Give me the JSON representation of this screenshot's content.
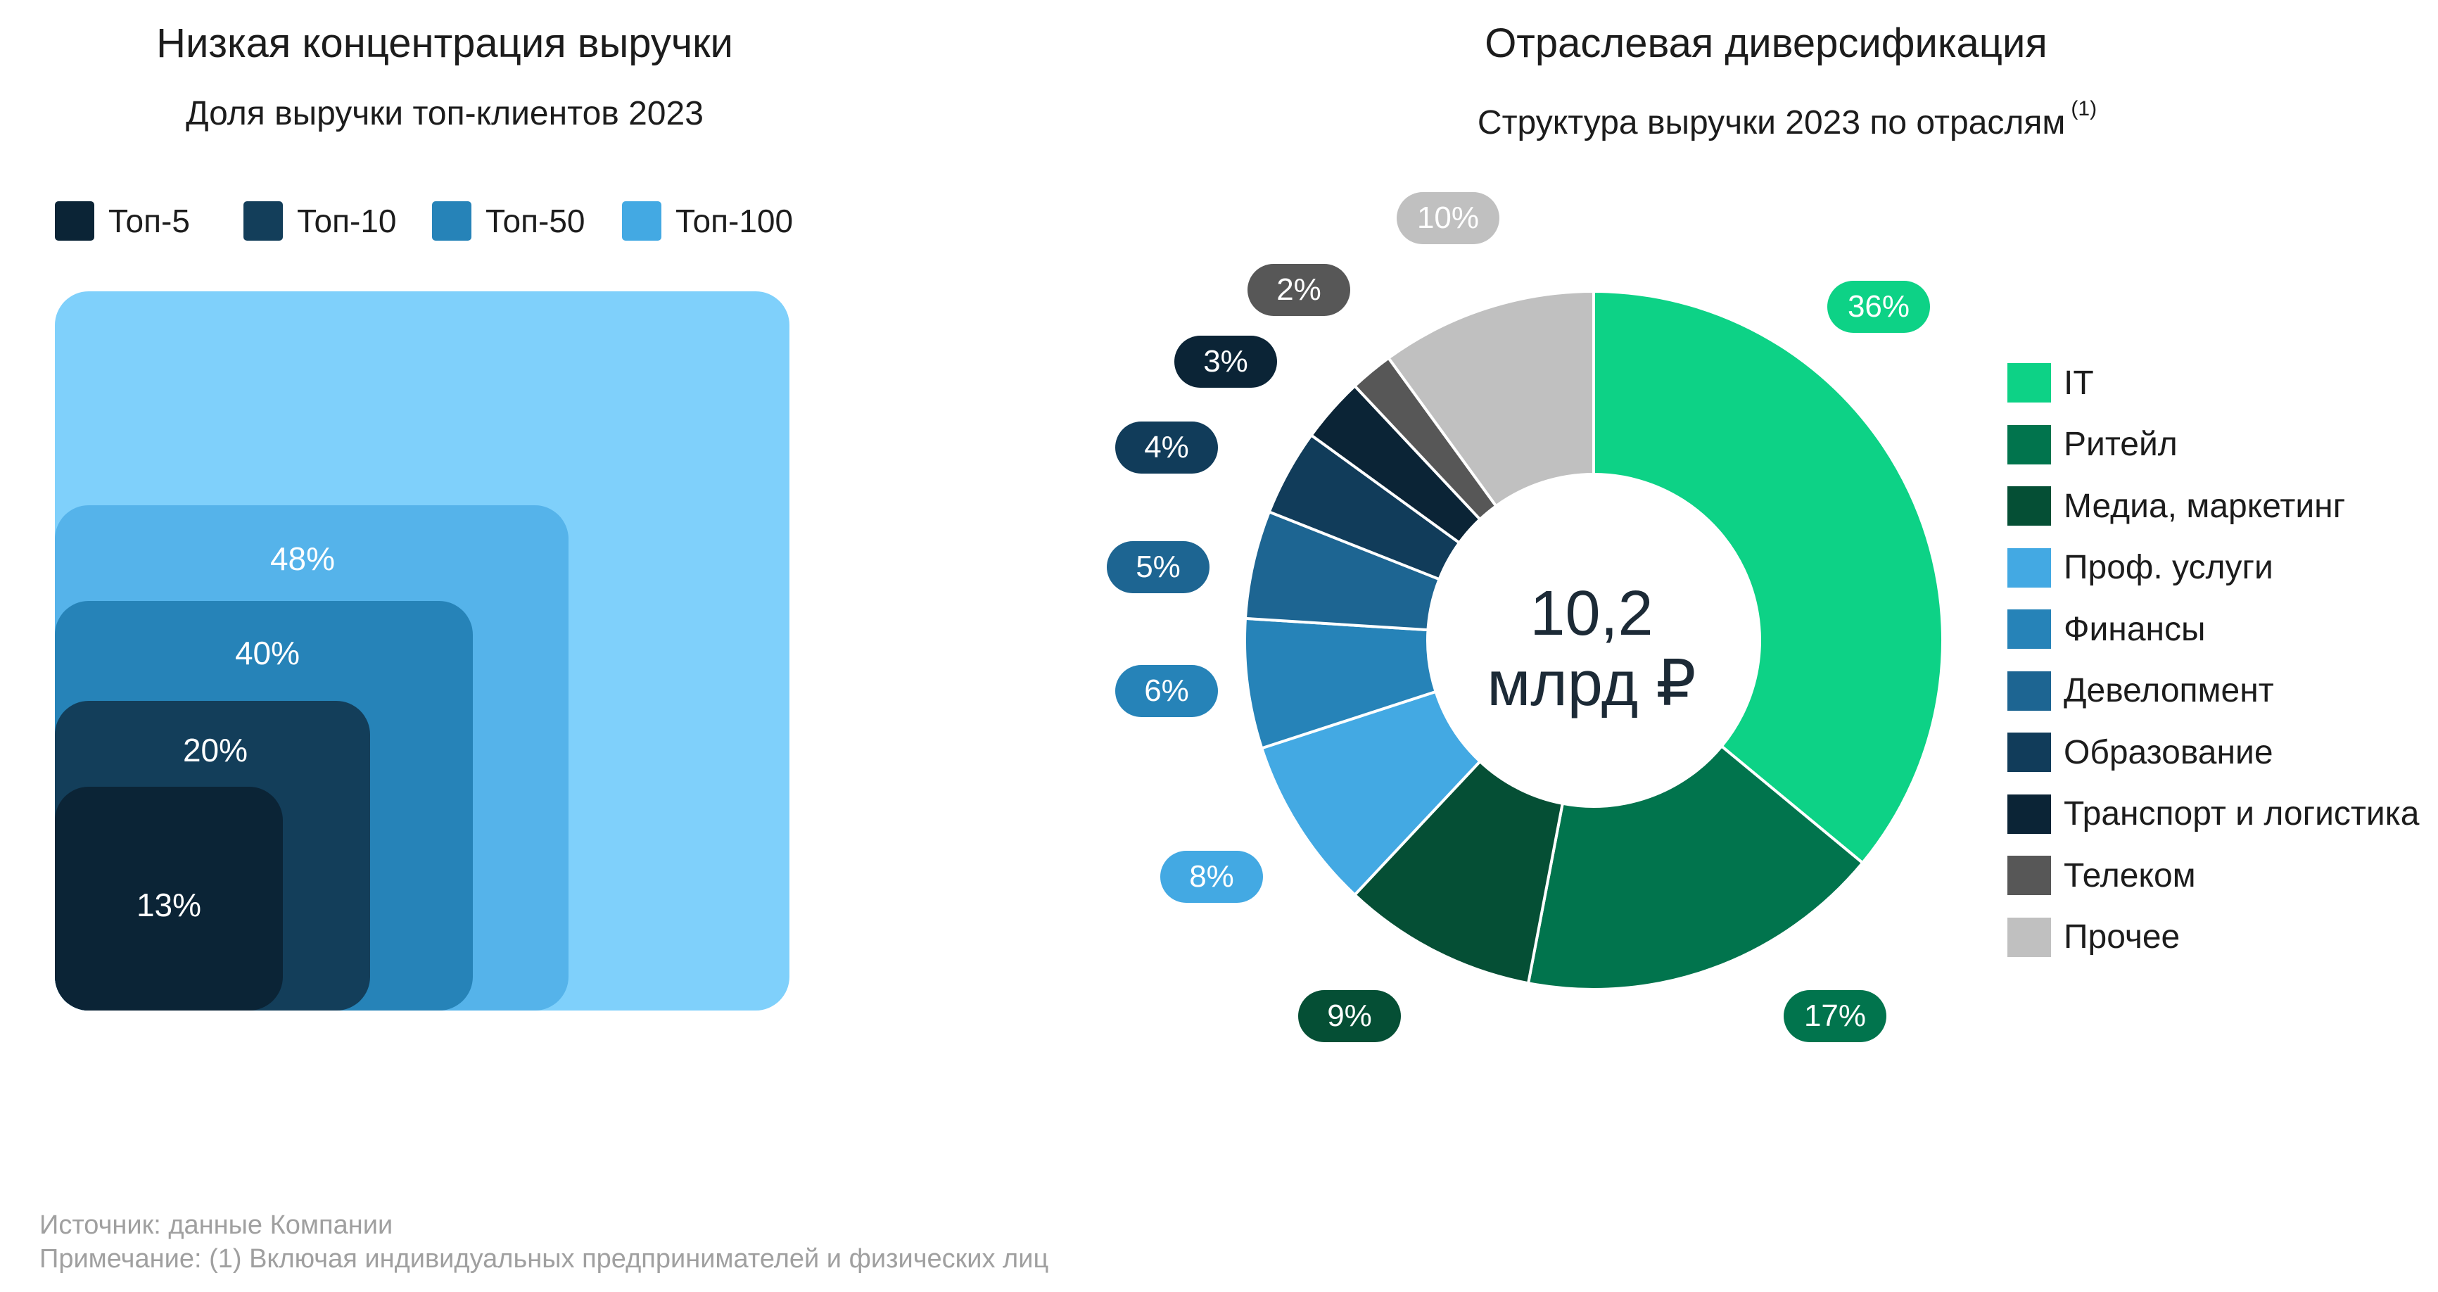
{
  "left_panel": {
    "title": "Низкая концентрация выручки",
    "subtitle": "Доля выручки топ-клиентов 2023",
    "legend": [
      {
        "label": "Топ-5",
        "color": "#0b2436"
      },
      {
        "label": "Топ-10",
        "color": "#133e5a"
      },
      {
        "label": "Топ-50",
        "color": "#2683b8"
      },
      {
        "label": "Топ-100",
        "color": "#43a9e3"
      }
    ]
  },
  "right_panel": {
    "title": "Отраслевая диверсификация",
    "subtitle": "Структура выручки 2023 по отраслям",
    "subtitle_note": "(1)",
    "center_value": "10,2",
    "center_unit": "млрд ₽"
  },
  "chart_data": [
    {
      "type": "nested-area",
      "title": "Низкая концентрация выручки",
      "subtitle": "Доля выручки топ-клиентов 2023",
      "series": [
        {
          "name": "Топ-5",
          "value": 13,
          "label": "13%",
          "color": "#0b2436"
        },
        {
          "name": "Топ-10",
          "value": 20,
          "label": "20%",
          "color": "#133e5a"
        },
        {
          "name": "Топ-50",
          "value": 40,
          "label": "40%",
          "color": "#2683b8"
        },
        {
          "name": "Топ-100",
          "value": 48,
          "label": "48%",
          "color": "#55b3ea"
        }
      ],
      "total_color": "#7fd0fb"
    },
    {
      "type": "pie",
      "donut": true,
      "title": "Отраслевая диверсификация",
      "subtitle": "Структура выручки 2023 по отраслям",
      "center_label": "10,2 млрд ₽",
      "slices": [
        {
          "name": "IT",
          "value": 36,
          "label": "36%",
          "color": "#0dd286"
        },
        {
          "name": "Ритейл",
          "value": 17,
          "label": "17%",
          "color": "#01744d"
        },
        {
          "name": "Медиа, маркетинг",
          "value": 9,
          "label": "9%",
          "color": "#054f35"
        },
        {
          "name": "Проф. услуги",
          "value": 8,
          "label": "8%",
          "color": "#43a9e3"
        },
        {
          "name": "Финансы",
          "value": 6,
          "label": "6%",
          "color": "#2683b8"
        },
        {
          "name": "Девелопмент",
          "value": 5,
          "label": "5%",
          "color": "#1d6592"
        },
        {
          "name": "Образование",
          "value": 4,
          "label": "4%",
          "color": "#113c5a"
        },
        {
          "name": "Транспорт и логистика",
          "value": 3,
          "label": "3%",
          "color": "#0b2436"
        },
        {
          "name": "Телеком",
          "value": 2,
          "label": "2%",
          "color": "#575757"
        },
        {
          "name": "Прочее",
          "value": 10,
          "label": "10%",
          "color": "#c0c0c0"
        }
      ],
      "legend_position": "right"
    }
  ],
  "footer": {
    "source": "Источник: данные Компании",
    "note": "Примечание: (1) Включая индивидуальных предпринимателей и физических лиц"
  }
}
